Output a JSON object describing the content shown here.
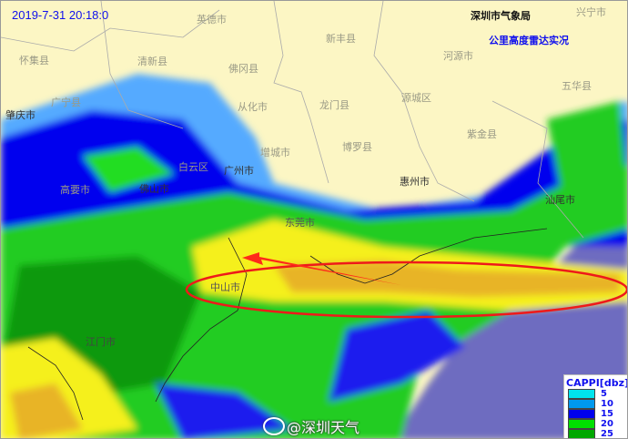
{
  "header": {
    "timestamp": "2019-7-31  20:18:0",
    "agency": "深圳市气象局",
    "product_title": "公里高度雷达实况"
  },
  "cities": [
    {
      "name": "英德市"
    },
    {
      "name": "新丰县"
    },
    {
      "name": "兴宁市"
    },
    {
      "name": "怀集县"
    },
    {
      "name": "清新县"
    },
    {
      "name": "佛冈县"
    },
    {
      "name": "河源市"
    },
    {
      "name": "五华县"
    },
    {
      "name": "广宁县"
    },
    {
      "name": "肇庆市"
    },
    {
      "name": "从化市"
    },
    {
      "name": "龙门县"
    },
    {
      "name": "源城区"
    },
    {
      "name": "紫金县"
    },
    {
      "name": "博罗县"
    },
    {
      "name": "白云区"
    },
    {
      "name": "广州市"
    },
    {
      "name": "增城市"
    },
    {
      "name": "惠州市"
    },
    {
      "name": "佛山市"
    },
    {
      "name": "高要市"
    },
    {
      "name": "汕尾市"
    },
    {
      "name": "东莞市"
    },
    {
      "name": "中山市"
    },
    {
      "name": "江门市"
    }
  ],
  "annotation": {
    "arrow_color": "#ff2a1a",
    "ellipse_color": "#ee1a1a"
  },
  "legend": {
    "title": "CAPPI[dbz]",
    "items": [
      {
        "label": "5",
        "color": "#00e4ee"
      },
      {
        "label": "10",
        "color": "#0099ee"
      },
      {
        "label": "15",
        "color": "#0000ee"
      },
      {
        "label": "20",
        "color": "#00e000"
      },
      {
        "label": "25",
        "color": "#00a800"
      }
    ]
  },
  "watermark": {
    "text": "@深圳天气"
  }
}
